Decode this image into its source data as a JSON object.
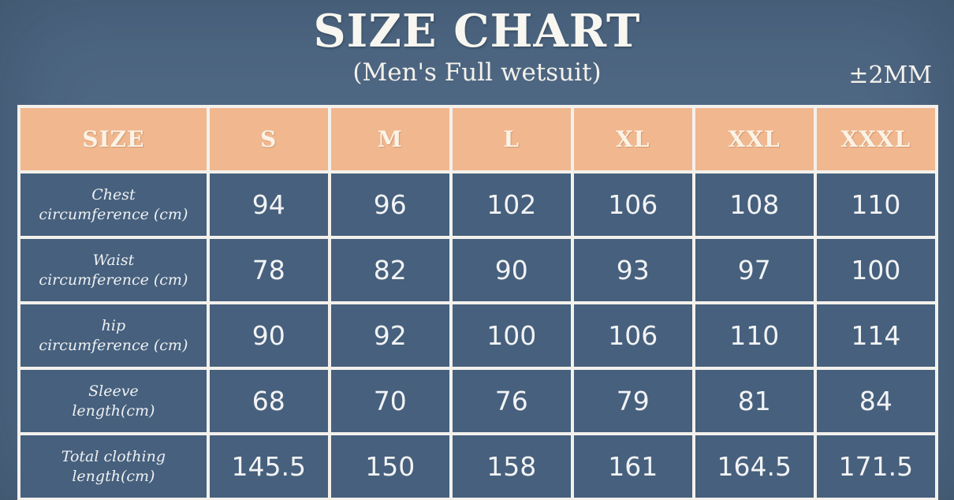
{
  "header": {
    "title": "SIZE CHART",
    "subtitle": "(Men's Full wetsuit)",
    "tolerance": "±2MM"
  },
  "colors": {
    "page_background": "#4e6783",
    "cell_background": "#46607d",
    "header_background": "#f1b78f",
    "grid_border": "#f3f1ec",
    "text": "#f4f2ec"
  },
  "chart_data": {
    "type": "table",
    "title": "SIZE CHART",
    "subtitle": "(Men's Full wetsuit)",
    "tolerance": "±2MM",
    "columns": [
      "SIZE",
      "S",
      "M",
      "L",
      "XL",
      "XXL",
      "XXXL"
    ],
    "rows": [
      {
        "label_line1": "Chest",
        "label_line2": "circumference (cm)",
        "values": [
          94,
          96,
          102,
          106,
          108,
          110
        ]
      },
      {
        "label_line1": "Waist",
        "label_line2": "circumference (cm)",
        "values": [
          78,
          82,
          90,
          93,
          97,
          100
        ]
      },
      {
        "label_line1": "hip",
        "label_line2": "circumference (cm)",
        "values": [
          90,
          92,
          100,
          106,
          110,
          114
        ]
      },
      {
        "label_line1": "Sleeve",
        "label_line2": "length(cm)",
        "values": [
          68,
          70,
          76,
          79,
          81,
          84
        ]
      },
      {
        "label_line1": "Total clothing",
        "label_line2": "length(cm)",
        "values": [
          145.5,
          150,
          158,
          161,
          164.5,
          171.5
        ]
      }
    ]
  }
}
